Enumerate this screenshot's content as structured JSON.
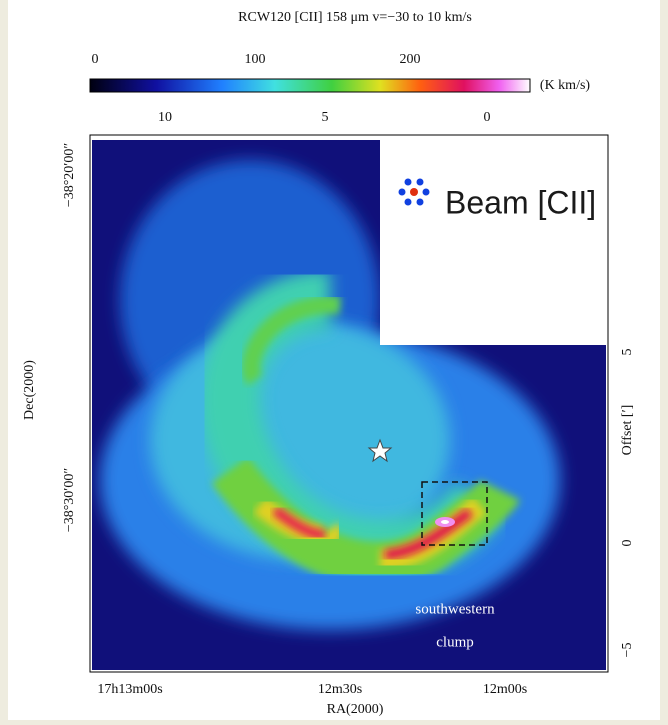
{
  "figure": {
    "title": "RCW120 [CII] 158 μm  v=−30 to 10 km/s",
    "colorbar": {
      "ticks": [
        0,
        100,
        200
      ],
      "unit": "(K km/s)"
    },
    "top_axis": {
      "ticks": [
        10,
        5,
        0
      ]
    },
    "left_axis": {
      "label": "Dec(2000)",
      "ticks": [
        "−38°20′00″",
        "−38°30′00″"
      ]
    },
    "right_axis": {
      "label": "Offset [′]",
      "ticks": [
        "5",
        "0",
        "−5"
      ]
    },
    "bottom_axis": {
      "label": "RA(2000)",
      "ticks": [
        "17h13m00s",
        "12m30s",
        "12m00s"
      ]
    },
    "annotations": {
      "beam": "Beam [CII]",
      "region_line1": "southwestern",
      "region_line2": "clump"
    }
  }
}
